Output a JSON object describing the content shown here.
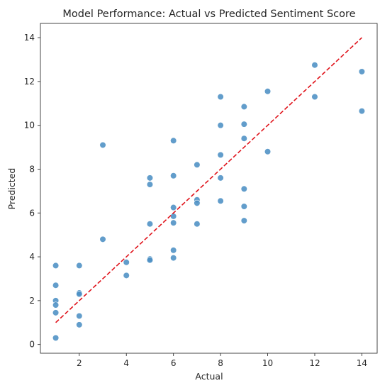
{
  "chart_data": {
    "type": "scatter",
    "title": "Model Performance: Actual vs Predicted Sentiment Score",
    "xlabel": "Actual",
    "ylabel": "Predicted",
    "xlim": [
      0.35,
      14.65
    ],
    "ylim": [
      -0.4,
      14.65
    ],
    "xticks": [
      2,
      4,
      6,
      8,
      10,
      12,
      14
    ],
    "yticks": [
      0,
      2,
      4,
      6,
      8,
      10,
      12,
      14
    ],
    "grid": false,
    "point_color": "#4c8fc4",
    "reference_line": {
      "style": "dashed",
      "color": "#e0131b",
      "from": [
        1,
        1
      ],
      "to": [
        14,
        14
      ]
    },
    "points": [
      {
        "x": 1,
        "y": 3.6
      },
      {
        "x": 1,
        "y": 2.7
      },
      {
        "x": 1,
        "y": 2.0
      },
      {
        "x": 1,
        "y": 1.8
      },
      {
        "x": 1,
        "y": 1.45
      },
      {
        "x": 1,
        "y": 0.3
      },
      {
        "x": 2,
        "y": 3.6
      },
      {
        "x": 2,
        "y": 2.35
      },
      {
        "x": 2,
        "y": 2.3
      },
      {
        "x": 2,
        "y": 1.3
      },
      {
        "x": 2,
        "y": 0.9
      },
      {
        "x": 3,
        "y": 9.1
      },
      {
        "x": 3,
        "y": 4.8
      },
      {
        "x": 4,
        "y": 3.75
      },
      {
        "x": 4,
        "y": 3.15
      },
      {
        "x": 5,
        "y": 7.6
      },
      {
        "x": 5,
        "y": 7.3
      },
      {
        "x": 5,
        "y": 5.5
      },
      {
        "x": 5,
        "y": 3.9
      },
      {
        "x": 5,
        "y": 3.85
      },
      {
        "x": 6,
        "y": 9.3
      },
      {
        "x": 6,
        "y": 7.7
      },
      {
        "x": 6,
        "y": 6.25
      },
      {
        "x": 6,
        "y": 5.85
      },
      {
        "x": 6,
        "y": 5.55
      },
      {
        "x": 6,
        "y": 4.3
      },
      {
        "x": 6,
        "y": 3.95
      },
      {
        "x": 7,
        "y": 8.2
      },
      {
        "x": 7,
        "y": 6.6
      },
      {
        "x": 7,
        "y": 6.45
      },
      {
        "x": 7,
        "y": 5.5
      },
      {
        "x": 8,
        "y": 11.3
      },
      {
        "x": 8,
        "y": 10.0
      },
      {
        "x": 8,
        "y": 8.65
      },
      {
        "x": 8,
        "y": 7.6
      },
      {
        "x": 8,
        "y": 6.55
      },
      {
        "x": 9,
        "y": 10.85
      },
      {
        "x": 9,
        "y": 10.05
      },
      {
        "x": 9,
        "y": 9.4
      },
      {
        "x": 9,
        "y": 7.1
      },
      {
        "x": 9,
        "y": 6.3
      },
      {
        "x": 9,
        "y": 5.65
      },
      {
        "x": 10,
        "y": 11.55
      },
      {
        "x": 10,
        "y": 8.8
      },
      {
        "x": 12,
        "y": 12.75
      },
      {
        "x": 12,
        "y": 11.3
      },
      {
        "x": 14,
        "y": 12.45
      },
      {
        "x": 14,
        "y": 10.65
      }
    ]
  }
}
